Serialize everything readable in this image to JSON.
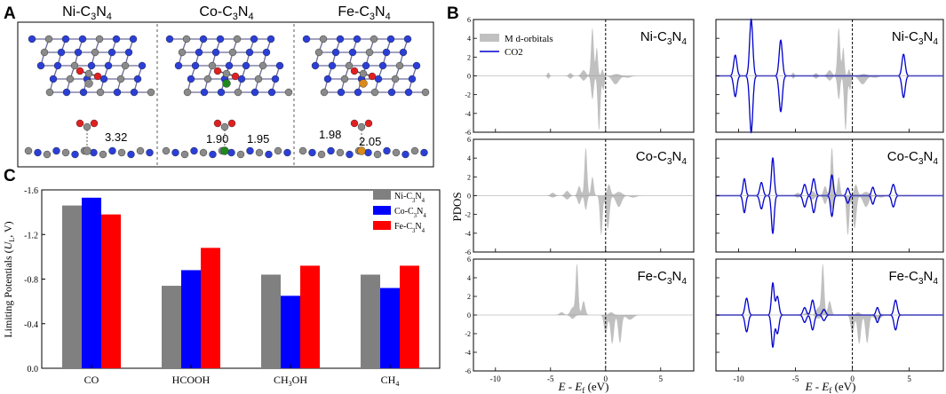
{
  "panel_labels": {
    "a": "A",
    "b": "B",
    "c": "C"
  },
  "structures": {
    "titles": [
      {
        "pre": "Ni-C",
        "s1": "3",
        "mid": "N",
        "s2": "4"
      },
      {
        "pre": "Co-C",
        "s1": "3",
        "mid": "N",
        "s2": "4"
      },
      {
        "pre": "Fe-C",
        "s1": "3",
        "mid": "N",
        "s2": "4"
      }
    ],
    "distances": [
      "3.32",
      "1.90",
      "1.95",
      "1.98",
      "2.05"
    ],
    "colors": {
      "C": "#8a8a8a",
      "N": "#2b3fd6",
      "O": "#e02020",
      "Co": "#1e8a1e",
      "Fe": "#d88a1a"
    }
  },
  "chart_data": [
    {
      "type": "bar",
      "panel": "C",
      "categories": [
        "CO",
        "HCOOH",
        "CH3OH",
        "CH4"
      ],
      "category_labels": [
        {
          "main": "CO",
          "sub": "",
          "tail": ""
        },
        {
          "main": "HCOOH",
          "sub": "",
          "tail": ""
        },
        {
          "main": "CH",
          "sub": "3",
          "tail": "OH"
        },
        {
          "main": "CH",
          "sub": "4",
          "tail": ""
        }
      ],
      "series": [
        {
          "name": "Ni-C3N4",
          "color": "#808080",
          "values": [
            -1.46,
            -0.74,
            -0.84,
            -0.84
          ]
        },
        {
          "name": "Co-C3N4",
          "color": "#0000ff",
          "values": [
            -1.53,
            -0.88,
            -0.65,
            -0.72
          ]
        },
        {
          "name": "Fe-C3N4",
          "color": "#ff0000",
          "values": [
            -1.38,
            -1.08,
            -0.92,
            -0.92
          ]
        }
      ],
      "legend_labels": [
        {
          "pre": "Ni-C",
          "s1": "3",
          "mid": "N",
          "s2": "4"
        },
        {
          "pre": "Co-C",
          "s1": "3",
          "mid": "N",
          "s2": "4"
        },
        {
          "pre": "Fe-C",
          "s1": "3",
          "mid": "N",
          "s2": "4"
        }
      ],
      "ylabel": {
        "pre": "Limiting Potentials (",
        "italic": "U",
        "sub": "L",
        "post": ", V)"
      },
      "ylim": [
        0,
        -1.6
      ],
      "yticks": [
        "0.0",
        "-0.4",
        "-0.8",
        "-1.2",
        "-1.6"
      ],
      "ytick_values": [
        0,
        -0.4,
        -0.8,
        -1.2,
        -1.6
      ],
      "legend_position": "top-right"
    },
    {
      "type": "area",
      "panel": "B",
      "ylabel": "PDOS",
      "xlabel": {
        "italic1": "E",
        "mid": " - ",
        "italic2": "E",
        "sub": "f",
        "post": " (eV)"
      },
      "xlim": [
        -12,
        8
      ],
      "ylim": [
        -6,
        6
      ],
      "xticks": [
        "-10",
        "-5",
        "0",
        "5"
      ],
      "xtick_values": [
        -10,
        -5,
        0,
        5
      ],
      "yticks": [
        "-6",
        "-4",
        "-2",
        "0",
        "2",
        "4",
        "6"
      ],
      "ytick_values": [
        -6,
        -4,
        -2,
        0,
        2,
        4,
        6
      ],
      "fermi_level": 0,
      "legend": [
        "M d-orbitals",
        "CO2"
      ],
      "series_colors": {
        "d_orbitals": "#c0c0c0",
        "co2": "#0000cc"
      },
      "rows": [
        {
          "label": {
            "pre": "Ni-C",
            "s1": "3",
            "mid": "N",
            "s2": "4"
          },
          "d_orbitals": {
            "up": [
              [
                -5.2,
                0.1,
                0.35
              ],
              [
                -3.2,
                0.15,
                0.3
              ],
              [
                -2.0,
                0.2,
                0.6
              ],
              [
                -1.2,
                0.12,
                5.1
              ],
              [
                -0.8,
                0.1,
                3.0
              ],
              [
                -0.3,
                0.1,
                0.7
              ],
              [
                1.0,
                0.3,
                0.2
              ]
            ],
            "down": [
              [
                -5.2,
                0.1,
                0.3
              ],
              [
                -3.2,
                0.15,
                0.3
              ],
              [
                -2.0,
                0.2,
                0.5
              ],
              [
                -1.2,
                0.12,
                2.5
              ],
              [
                -0.6,
                0.12,
                5.8
              ],
              [
                -0.2,
                0.1,
                1.5
              ],
              [
                0.9,
                0.3,
                0.9
              ],
              [
                2.0,
                0.3,
                0.2
              ]
            ]
          },
          "co2": [
            [
              -10.3,
              0.14,
              2.2
            ],
            [
              -8.9,
              0.14,
              6.0
            ],
            [
              -6.3,
              0.14,
              3.8
            ],
            [
              4.5,
              0.14,
              2.3
            ]
          ]
        },
        {
          "label": {
            "pre": "Co-C",
            "s1": "3",
            "mid": "N",
            "s2": "4"
          },
          "d_orbitals": {
            "up": [
              [
                -4.8,
                0.2,
                0.3
              ],
              [
                -3.5,
                0.2,
                0.5
              ],
              [
                -2.4,
                0.15,
                1.0
              ],
              [
                -1.8,
                0.12,
                5.1
              ],
              [
                -1.2,
                0.12,
                2.0
              ],
              [
                0.3,
                0.15,
                1.2
              ],
              [
                1.2,
                0.3,
                0.4
              ]
            ],
            "down": [
              [
                -4.8,
                0.2,
                0.2
              ],
              [
                -3.5,
                0.2,
                0.4
              ],
              [
                -2.4,
                0.15,
                0.9
              ],
              [
                -1.8,
                0.12,
                1.5
              ],
              [
                -0.4,
                0.12,
                4.2
              ],
              [
                0.2,
                0.15,
                3.5
              ],
              [
                1.2,
                0.25,
                1.2
              ],
              [
                2.5,
                0.3,
                0.2
              ]
            ]
          },
          "co2": [
            [
              -9.5,
              0.12,
              1.8
            ],
            [
              -8.0,
              0.14,
              1.4
            ],
            [
              -7.0,
              0.12,
              4.0
            ],
            [
              -4.2,
              0.14,
              1.2
            ],
            [
              -3.4,
              0.14,
              1.8
            ],
            [
              -1.8,
              0.12,
              2.2
            ],
            [
              -0.4,
              0.12,
              0.8
            ],
            [
              1.8,
              0.12,
              0.9
            ],
            [
              3.6,
              0.14,
              1.2
            ]
          ]
        },
        {
          "label": {
            "pre": "Fe-C",
            "s1": "3",
            "mid": "N",
            "s2": "4"
          },
          "d_orbitals": {
            "up": [
              [
                -4.0,
                0.2,
                0.3
              ],
              [
                -3.0,
                0.2,
                0.8
              ],
              [
                -2.6,
                0.12,
                5.4
              ],
              [
                -2.0,
                0.15,
                1.5
              ],
              [
                0.5,
                0.2,
                0.3
              ]
            ],
            "down": [
              [
                -3.0,
                0.2,
                0.4
              ],
              [
                0.0,
                0.15,
                2.0
              ],
              [
                0.6,
                0.15,
                3.1
              ],
              [
                1.3,
                0.15,
                3.0
              ],
              [
                2.2,
                0.3,
                0.5
              ]
            ]
          },
          "co2": [
            [
              -9.3,
              0.14,
              1.8
            ],
            [
              -7.0,
              0.12,
              3.4
            ],
            [
              -6.6,
              0.14,
              2.0
            ],
            [
              -4.2,
              0.14,
              0.8
            ],
            [
              -3.5,
              0.14,
              1.6
            ],
            [
              -2.5,
              0.14,
              0.6
            ],
            [
              2.2,
              0.12,
              0.8
            ],
            [
              3.8,
              0.14,
              1.6
            ]
          ]
        }
      ]
    }
  ]
}
